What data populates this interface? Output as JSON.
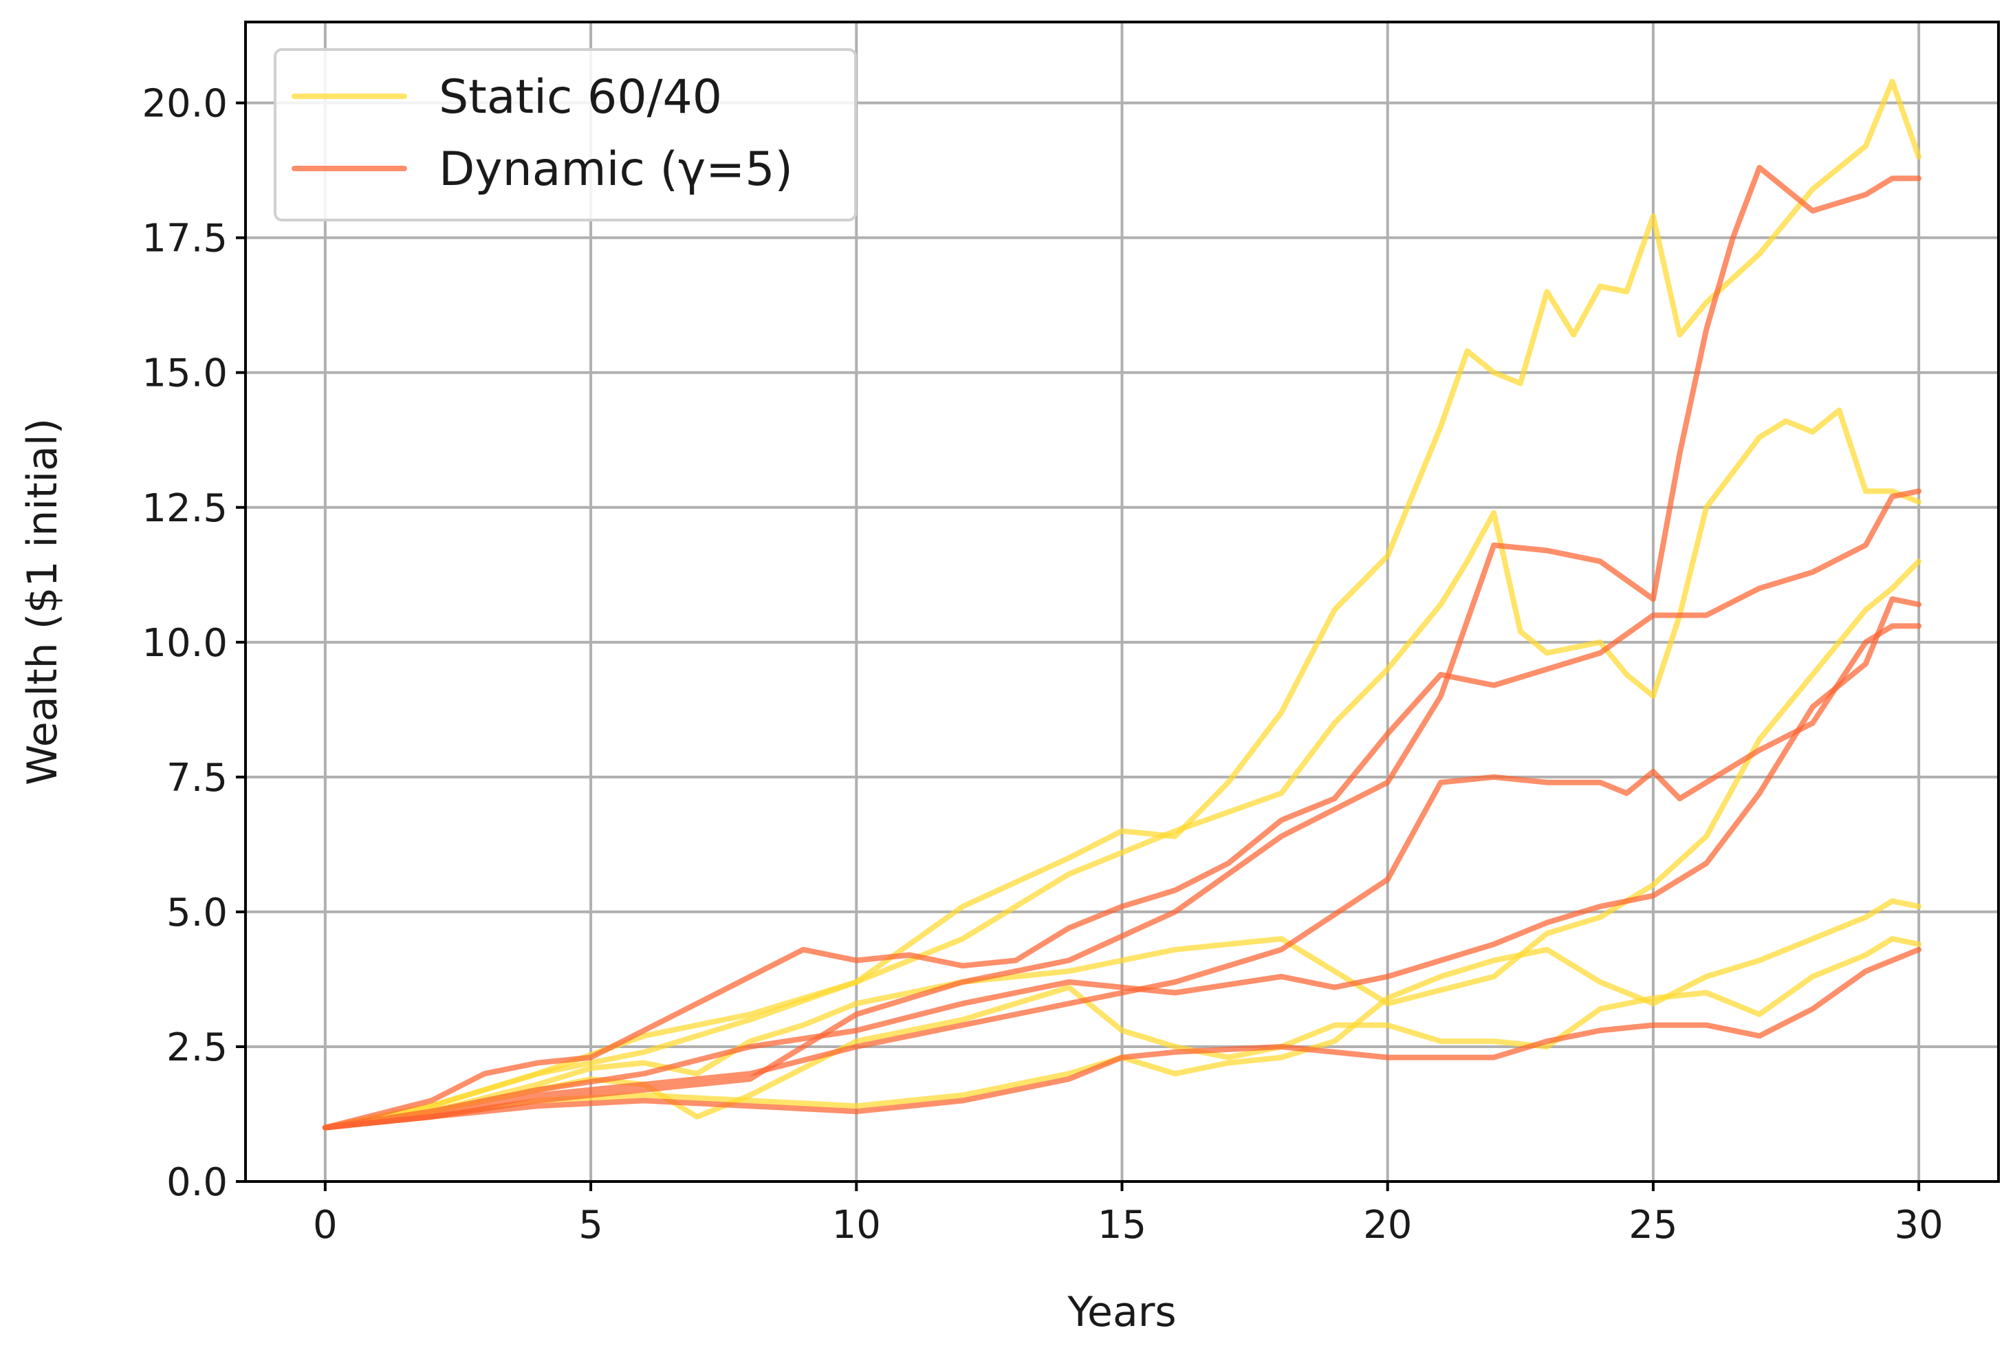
{
  "chart_data": {
    "type": "line",
    "title": "",
    "xlabel": "Years",
    "ylabel": "Wealth ($1 initial)",
    "xlim": [
      -1.5,
      31.5
    ],
    "ylim": [
      0,
      21.5
    ],
    "xticks": [
      0,
      5,
      10,
      15,
      20,
      25,
      30
    ],
    "yticks": [
      0.0,
      2.5,
      5.0,
      7.5,
      10.0,
      12.5,
      15.0,
      17.5,
      20.0
    ],
    "xtick_labels": [
      "0",
      "5",
      "10",
      "15",
      "20",
      "25",
      "30"
    ],
    "ytick_labels": [
      "0.0",
      "2.5",
      "5.0",
      "7.5",
      "10.0",
      "12.5",
      "15.0",
      "17.5",
      "20.0"
    ],
    "grid": true,
    "legend_position": "top-left",
    "colors": {
      "static": "#ffd92f",
      "dynamic": "#fc6432"
    },
    "legend": [
      {
        "label": "Static 60/40",
        "group": "static"
      },
      {
        "label": "Dynamic (γ=5)",
        "group": "dynamic"
      }
    ],
    "series": [
      {
        "group": "static",
        "x": [
          0,
          2,
          4,
          6,
          8,
          10,
          12,
          14,
          15,
          16,
          17,
          18,
          19,
          20,
          21,
          21.5,
          22,
          22.5,
          23,
          23.5,
          24,
          24.5,
          25,
          25.5,
          26,
          27,
          28,
          29,
          29.5,
          30
        ],
        "y": [
          1.0,
          1.4,
          2.0,
          2.7,
          3.1,
          3.7,
          5.1,
          6.0,
          6.5,
          6.4,
          7.4,
          8.7,
          10.6,
          11.6,
          14.0,
          15.4,
          15.0,
          14.8,
          16.5,
          15.7,
          16.6,
          16.5,
          17.9,
          15.7,
          16.3,
          17.2,
          18.4,
          19.2,
          20.4,
          19.0
        ]
      },
      {
        "group": "static",
        "x": [
          0,
          2,
          4,
          6,
          8,
          10,
          12,
          14,
          16,
          18,
          19,
          20,
          21,
          21.5,
          22,
          22.5,
          23,
          24,
          24.5,
          25,
          25.5,
          26,
          27,
          27.5,
          28,
          28.5,
          29,
          29.5,
          30
        ],
        "y": [
          1.0,
          1.4,
          2.0,
          2.4,
          3.0,
          3.7,
          4.5,
          5.7,
          6.5,
          7.2,
          8.5,
          9.5,
          10.7,
          11.5,
          12.4,
          10.2,
          9.8,
          10.0,
          9.4,
          9.0,
          10.5,
          12.5,
          13.8,
          14.1,
          13.9,
          14.3,
          12.8,
          12.8,
          12.6
        ]
      },
      {
        "group": "static",
        "x": [
          0,
          2,
          4,
          5,
          6,
          7,
          8,
          9,
          10,
          12,
          14,
          16,
          18,
          20,
          22,
          23,
          24,
          25,
          26,
          27,
          28,
          29,
          29.5,
          30
        ],
        "y": [
          1.0,
          1.3,
          1.8,
          2.1,
          2.2,
          2.0,
          2.6,
          2.9,
          3.3,
          3.7,
          3.9,
          4.3,
          4.5,
          3.3,
          3.8,
          4.6,
          4.9,
          5.5,
          6.4,
          8.2,
          9.4,
          10.6,
          11.0,
          11.5
        ]
      },
      {
        "group": "static",
        "x": [
          0,
          2,
          4,
          5,
          6,
          7,
          8,
          9,
          10,
          12,
          14,
          15,
          16,
          17,
          18,
          19,
          20,
          21,
          22,
          23,
          24,
          25,
          26,
          27,
          28,
          29,
          29.5,
          30
        ],
        "y": [
          1.0,
          1.3,
          1.7,
          1.9,
          1.8,
          1.2,
          1.6,
          2.1,
          2.6,
          3.0,
          3.6,
          2.8,
          2.5,
          2.3,
          2.5,
          2.9,
          2.9,
          2.6,
          2.6,
          2.5,
          3.2,
          3.4,
          3.5,
          3.1,
          3.8,
          4.2,
          4.5,
          4.4
        ]
      },
      {
        "group": "static",
        "x": [
          0,
          2,
          4,
          6,
          8,
          10,
          12,
          14,
          15,
          16,
          17,
          18,
          19,
          20,
          21,
          22,
          23,
          24,
          25,
          26,
          27,
          28,
          29,
          29.5,
          30
        ],
        "y": [
          1.0,
          1.2,
          1.5,
          1.6,
          1.5,
          1.4,
          1.6,
          2.0,
          2.3,
          2.0,
          2.2,
          2.3,
          2.6,
          3.4,
          3.8,
          4.1,
          4.3,
          3.7,
          3.3,
          3.8,
          4.1,
          4.5,
          4.9,
          5.2,
          5.1
        ]
      },
      {
        "group": "dynamic",
        "x": [
          0,
          2,
          4,
          6,
          8,
          10,
          12,
          14,
          16,
          18,
          20,
          21,
          22,
          23,
          24,
          24.5,
          25,
          25.5,
          26,
          27,
          28,
          29,
          29.5,
          30
        ],
        "y": [
          1.0,
          1.2,
          1.6,
          1.8,
          2.0,
          2.5,
          2.9,
          3.3,
          3.7,
          4.3,
          5.6,
          7.4,
          7.5,
          7.4,
          7.4,
          7.2,
          7.6,
          7.1,
          7.4,
          8.0,
          8.5,
          10.0,
          10.3,
          10.3
        ]
      },
      {
        "group": "dynamic",
        "x": [
          0,
          2,
          4,
          6,
          8,
          10,
          12,
          14,
          16,
          18,
          20,
          21,
          22,
          23,
          24,
          25,
          25.5,
          26,
          26.5,
          27,
          28,
          29,
          29.5,
          30
        ],
        "y": [
          1.0,
          1.2,
          1.5,
          1.7,
          1.9,
          3.1,
          3.7,
          4.1,
          5.0,
          6.4,
          7.4,
          9.0,
          11.8,
          11.7,
          11.5,
          10.8,
          13.5,
          15.8,
          17.5,
          18.8,
          18.0,
          18.3,
          18.6,
          18.6
        ]
      },
      {
        "group": "dynamic",
        "x": [
          0,
          2,
          3,
          4,
          5,
          6,
          7,
          8,
          9,
          10,
          11,
          12,
          13,
          14,
          15,
          16,
          17,
          18,
          19,
          20,
          21,
          22,
          23,
          24,
          25,
          26,
          27,
          28,
          29,
          29.5,
          30
        ],
        "y": [
          1.0,
          1.5,
          2.0,
          2.2,
          2.3,
          2.8,
          3.3,
          3.8,
          4.3,
          4.1,
          4.2,
          4.0,
          4.1,
          4.7,
          5.1,
          5.4,
          5.9,
          6.7,
          7.1,
          8.3,
          9.4,
          9.2,
          9.5,
          9.8,
          10.5,
          10.5,
          11.0,
          11.3,
          11.8,
          12.7,
          12.8
        ]
      },
      {
        "group": "dynamic",
        "x": [
          0,
          2,
          4,
          6,
          8,
          10,
          12,
          14,
          16,
          18,
          19,
          20,
          21,
          22,
          23,
          24,
          25,
          26,
          27,
          28,
          29,
          29.5,
          30
        ],
        "y": [
          1.0,
          1.3,
          1.7,
          2.0,
          2.5,
          2.8,
          3.3,
          3.7,
          3.5,
          3.8,
          3.6,
          3.8,
          4.1,
          4.4,
          4.8,
          5.1,
          5.3,
          5.9,
          7.2,
          8.8,
          9.6,
          10.8,
          10.7
        ]
      },
      {
        "group": "dynamic",
        "x": [
          0,
          2,
          4,
          6,
          8,
          10,
          12,
          14,
          15,
          16,
          18,
          20,
          22,
          23,
          24,
          25,
          26,
          27,
          28,
          29,
          30
        ],
        "y": [
          1.0,
          1.2,
          1.4,
          1.5,
          1.4,
          1.3,
          1.5,
          1.9,
          2.3,
          2.4,
          2.5,
          2.3,
          2.3,
          2.6,
          2.8,
          2.9,
          2.9,
          2.7,
          3.2,
          3.9,
          4.3
        ]
      }
    ]
  }
}
